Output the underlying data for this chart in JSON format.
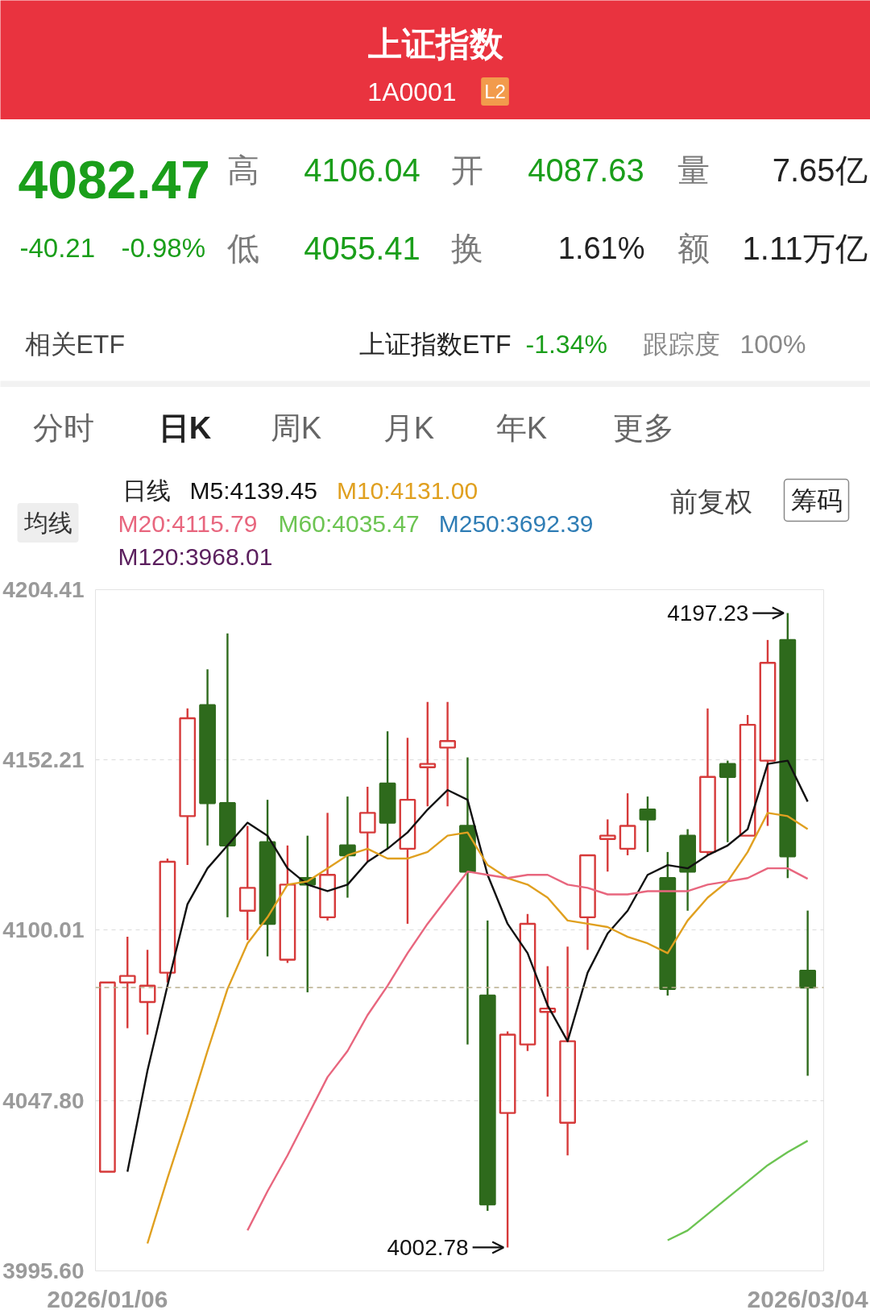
{
  "chart_data": {
    "type": "candlestick",
    "title": "上证指数",
    "subtitle": "1A0001",
    "categories": [
      "2026/01/06",
      null,
      null,
      null,
      null,
      null,
      null,
      null,
      null,
      null,
      null,
      null,
      null,
      null,
      null,
      null,
      null,
      null,
      null,
      null,
      null,
      null,
      null,
      null,
      null,
      null,
      null,
      null,
      null,
      null,
      null,
      null,
      null,
      null,
      null,
      "2026/03/04"
    ],
    "ohlc": [
      [
        4026,
        4084,
        4026,
        4084
      ],
      [
        4084,
        4098,
        4070,
        4086
      ],
      [
        4078,
        4094,
        4068,
        4083
      ],
      [
        4087,
        4122,
        4084,
        4121
      ],
      [
        4135,
        4168,
        4120,
        4165
      ],
      [
        4169,
        4180,
        4126,
        4139
      ],
      [
        4139,
        4191,
        4104,
        4126
      ],
      [
        4106,
        4132,
        4097,
        4113
      ],
      [
        4127,
        4140,
        4092,
        4102
      ],
      [
        4091,
        4126,
        4090,
        4114
      ],
      [
        4116,
        4129,
        4081,
        4114
      ],
      [
        4104,
        4136,
        4103,
        4117
      ],
      [
        4126,
        4141,
        4110,
        4123
      ],
      [
        4130,
        4144,
        4121,
        4136
      ],
      [
        4145,
        4161,
        4125,
        4133
      ],
      [
        4125,
        4159,
        4102,
        4140
      ],
      [
        4150,
        4170,
        4138,
        4151
      ],
      [
        4156,
        4170,
        4138,
        4158
      ],
      [
        4132,
        4153,
        4065,
        4118
      ],
      [
        4080,
        4103,
        4014,
        4016
      ],
      [
        4044,
        4069,
        4002.78,
        4068
      ],
      [
        4065,
        4105,
        4063,
        4102
      ],
      [
        4075,
        4089,
        4049,
        4076
      ],
      [
        4041,
        4095,
        4031,
        4066
      ],
      [
        4104,
        4123,
        4094,
        4123
      ],
      [
        4128,
        4134,
        4118,
        4129
      ],
      [
        4125,
        4142,
        4123,
        4132
      ],
      [
        4137,
        4141,
        4124,
        4134
      ],
      [
        4116,
        4124,
        4080,
        4082
      ],
      [
        4129,
        4131,
        4106,
        4118
      ],
      [
        4124,
        4168,
        4123,
        4147
      ],
      [
        4151,
        4152,
        4127,
        4147
      ],
      [
        4129,
        4166,
        4129,
        4163
      ],
      [
        4152,
        4189,
        4132,
        4182
      ],
      [
        4189,
        4197.23,
        4116,
        4122.68
      ],
      [
        4087.63,
        4106.04,
        4055.41,
        4082.47
      ]
    ],
    "colors": [
      "#d63a3a",
      "#d63a3a",
      "#d63a3a",
      "#d63a3a",
      "#d63a3a",
      "#2e6a1c",
      "#2e6a1c",
      "#d63a3a",
      "#2e6a1c",
      "#d63a3a",
      "#2e6a1c",
      "#d63a3a",
      "#2e6a1c",
      "#d63a3a",
      "#2e6a1c",
      "#d63a3a",
      "#d63a3a",
      "#d63a3a",
      "#2e6a1c",
      "#2e6a1c",
      "#d63a3a",
      "#d63a3a",
      "#d63a3a",
      "#d63a3a",
      "#d63a3a",
      "#d63a3a",
      "#d63a3a",
      "#2e6a1c",
      "#2e6a1c",
      "#2e6a1c",
      "#d63a3a",
      "#2e6a1c",
      "#d63a3a",
      "#d63a3a",
      "#2e6a1c",
      "#2e6a1c"
    ],
    "series": [
      {
        "name": "M5:4139.45",
        "type": "line",
        "color": "#111111",
        "values": [
          null,
          4026,
          4057,
          4083,
          4108,
          4119,
          4126,
          4133,
          4129,
          4119,
          4114,
          4112,
          4114,
          4121,
          4125,
          4130,
          4137,
          4143,
          4140,
          4117,
          4102,
          4093,
          4077,
          4066,
          4087,
          4099,
          4106,
          4117,
          4120,
          4119,
          4123,
          4126,
          4131,
          4151,
          4152,
          4139.45
        ]
      },
      {
        "name": "M10:4131.00",
        "type": "line",
        "color": "#e0a020",
        "values": [
          null,
          null,
          4004,
          4024,
          4043,
          4063,
          4082,
          4096,
          4104,
          4114,
          4115,
          4119,
          4123,
          4125,
          4122,
          4122,
          4124,
          4129,
          4130,
          4120,
          4116,
          4114,
          4110,
          4103,
          4102,
          4101,
          4098,
          4096,
          4093,
          4103,
          4110,
          4115,
          4124,
          4136,
          4135,
          4131.0
        ]
      },
      {
        "name": "M20:4115.79",
        "type": "line",
        "color": "#e8667e",
        "values": [
          null,
          null,
          null,
          null,
          null,
          null,
          null,
          4008,
          4020,
          4031,
          4043,
          4055,
          4063,
          4074,
          4083,
          4093,
          4102,
          4110,
          4118,
          4117,
          4116,
          4117,
          4117,
          4114,
          4113,
          4111,
          4111,
          4112,
          4112,
          4112,
          4114,
          4115,
          4116,
          4119,
          4119,
          4115.79
        ]
      },
      {
        "name": "M60:4035.47",
        "type": "line",
        "color": "#6cc452",
        "values": [
          null,
          null,
          null,
          null,
          null,
          null,
          null,
          null,
          null,
          null,
          null,
          null,
          null,
          null,
          null,
          null,
          null,
          null,
          null,
          null,
          null,
          null,
          null,
          null,
          null,
          null,
          null,
          null,
          4005,
          4008,
          4013,
          4018,
          4023,
          4028,
          4032,
          4035.47
        ]
      },
      {
        "name": "M250:3692.39",
        "type": "line",
        "color": "#2f7db5",
        "values": [
          null,
          null,
          null,
          null,
          null,
          null,
          null,
          null,
          null,
          null,
          null,
          null,
          null,
          null,
          null,
          null,
          null,
          null,
          null,
          null,
          null,
          null,
          null,
          null,
          null,
          null,
          null,
          null,
          null,
          null,
          null,
          null,
          null,
          null,
          null,
          null
        ]
      },
      {
        "name": "M120:3968.01",
        "type": "line",
        "color": "#5b1f5e",
        "values": [
          null,
          null,
          null,
          null,
          null,
          null,
          null,
          null,
          null,
          null,
          null,
          null,
          null,
          null,
          null,
          null,
          null,
          null,
          null,
          null,
          null,
          null,
          null,
          null,
          null,
          null,
          null,
          null,
          null,
          null,
          null,
          null,
          null,
          null,
          null,
          null
        ]
      }
    ],
    "ylim": [
      3995.6,
      4204.41
    ],
    "yticks": [
      4204.41,
      4152.21,
      4100.01,
      {
        "value": 4047.8,
        "label": "4047.80"
      },
      {
        "value": 3995.6,
        "label": "3995.60"
      }
    ],
    "grid": "y",
    "legend": "top left",
    "legend_title": "日线",
    "ref_lines": [
      {
        "axis": "y",
        "value": 4082.47,
        "color": "#b8ad8c",
        "line_style": "dashed"
      }
    ],
    "annotations": [
      "L2",
      "4082.47",
      "-40.21",
      "-0.98%",
      "高",
      "4106.04",
      "开",
      "4087.63",
      "量",
      "7.65亿",
      "低",
      "4055.41",
      "换",
      "1.61%",
      "额",
      "1.11万亿",
      "相关ETF",
      "上证指数ETF",
      "-1.34%",
      "跟踪度",
      "100%",
      "分时",
      "日K",
      "周K",
      "月K",
      "年K",
      "更多",
      "均线",
      "前复权",
      "筹码",
      "4197.23",
      "4002.78"
    ]
  }
}
